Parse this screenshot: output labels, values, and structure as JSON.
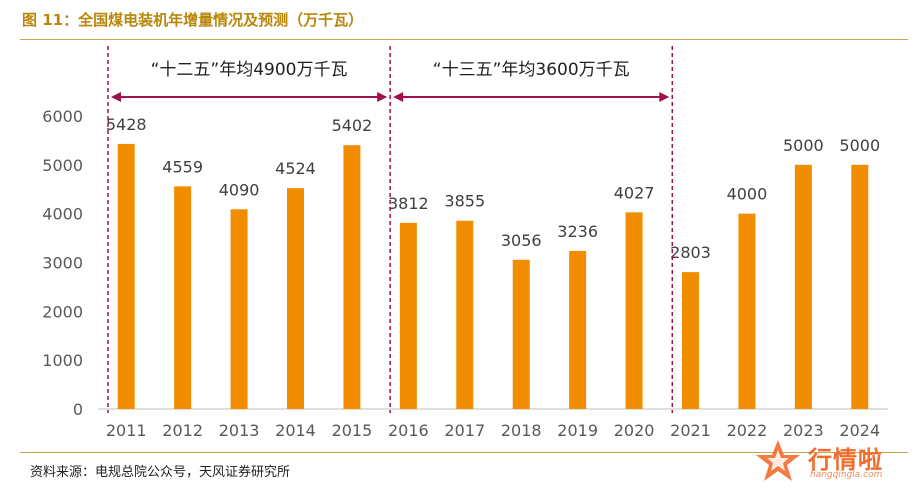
{
  "figure": {
    "title": "图 11：全国煤电装机年增量情况及预测（万千瓦）",
    "source": "资料来源：电规总院公众号，天风证券研究所"
  },
  "watermark": {
    "brand": "行情啦",
    "url": "hangqingla.com",
    "logo": "star-logo-icon"
  },
  "annotations": [
    {
      "label": "“十二五”年均4900万千瓦"
    },
    {
      "label": "“十三五”年均3600万千瓦"
    }
  ],
  "colors": {
    "bar": "#f28c00",
    "title": "#b8860b",
    "annotation_line": "#a0104a",
    "axis": "#bfbfbf",
    "tick_text": "#595959",
    "rule": "#c9a45a"
  },
  "chart_data": {
    "type": "bar",
    "title": "",
    "xlabel": "",
    "ylabel": "",
    "categories": [
      "2011",
      "2012",
      "2013",
      "2014",
      "2015",
      "2016",
      "2017",
      "2018",
      "2019",
      "2020",
      "2021",
      "2022",
      "2023",
      "2024"
    ],
    "values": [
      5428,
      4559,
      4090,
      4524,
      5402,
      3812,
      3855,
      3056,
      3236,
      4027,
      2803,
      4000,
      5000,
      5000
    ],
    "data_labels": [
      "5428",
      "4559",
      "4090",
      "4524",
      "5402",
      "3812",
      "3855",
      "3056",
      "3236",
      "4027",
      "2803",
      "4000",
      "5000",
      "5000"
    ],
    "ylim": [
      0,
      6000
    ],
    "yticks": [
      0,
      1000,
      2000,
      3000,
      4000,
      5000,
      6000
    ],
    "grid": false,
    "legend": "none"
  }
}
